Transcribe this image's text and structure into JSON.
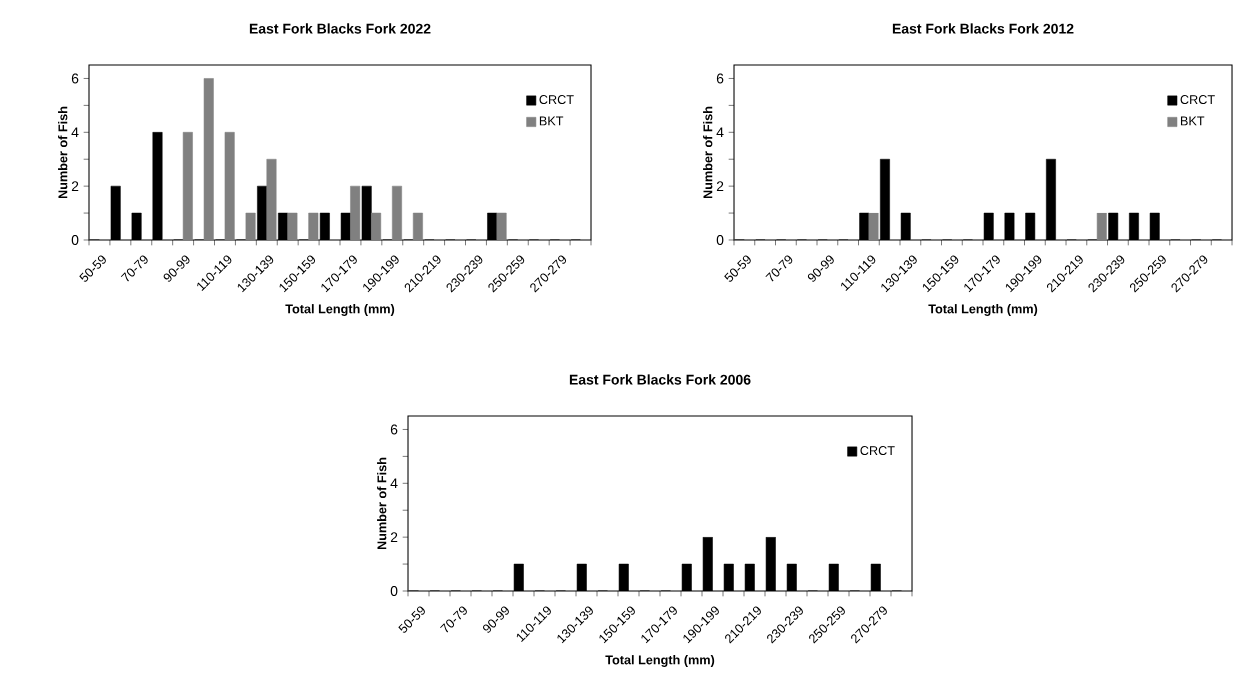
{
  "chart_data": [
    {
      "type": "bar",
      "title": "East Fork Blacks Fork 2022",
      "xlabel": "Total Length (mm)",
      "ylabel": "Number of Fish",
      "categories": [
        "50-59",
        null,
        "70-79",
        null,
        "90-99",
        null,
        "110-119",
        null,
        "130-139",
        null,
        "150-159",
        null,
        "170-179",
        null,
        "190-199",
        null,
        "210-219",
        null,
        "230-239",
        null,
        "250-259",
        null,
        "270-279",
        null
      ],
      "series": [
        {
          "name": "CRCT",
          "color": "#000000",
          "values": [
            0,
            2,
            1,
            4,
            0,
            0,
            0,
            0,
            2,
            1,
            0,
            1,
            1,
            2,
            0,
            0,
            0,
            0,
            0,
            1,
            0,
            0,
            0,
            0
          ]
        },
        {
          "name": "BKT",
          "color": "#808080",
          "values": [
            0,
            0,
            0,
            0,
            4,
            6,
            4,
            1,
            3,
            1,
            1,
            0,
            2,
            1,
            2,
            1,
            0,
            0,
            0,
            1,
            0,
            0,
            0,
            0
          ]
        }
      ],
      "ylim": [
        0,
        6.5
      ],
      "yticks": [
        0,
        {
          "value": 1,
          "label": null
        },
        2,
        {
          "value": 3,
          "label": null
        },
        4,
        {
          "value": 5,
          "label": null
        },
        6
      ],
      "legend": "top right"
    },
    {
      "type": "bar",
      "title": "East Fork Blacks Fork 2012",
      "xlabel": "Total Length (mm)",
      "ylabel": "Number of Fish",
      "categories": [
        "50-59",
        null,
        "70-79",
        null,
        "90-99",
        null,
        "110-119",
        null,
        "130-139",
        null,
        "150-159",
        null,
        "170-179",
        null,
        "190-199",
        null,
        "210-219",
        null,
        "230-239",
        null,
        "250-259",
        null,
        "270-279",
        null
      ],
      "series": [
        {
          "name": "CRCT",
          "color": "#000000",
          "values": [
            0,
            0,
            0,
            0,
            0,
            0,
            1,
            3,
            1,
            0,
            0,
            0,
            1,
            1,
            1,
            3,
            0,
            0,
            1,
            1,
            1,
            0,
            0,
            0
          ]
        },
        {
          "name": "BKT",
          "color": "#808080",
          "values": [
            0,
            0,
            0,
            0,
            0,
            0,
            1,
            0,
            0,
            0,
            0,
            0,
            0,
            0,
            0,
            0,
            0,
            1,
            0,
            0,
            0,
            0,
            0,
            0
          ]
        }
      ],
      "ylim": [
        0,
        6.5
      ],
      "yticks": [
        0,
        {
          "value": 1,
          "label": null
        },
        2,
        {
          "value": 3,
          "label": null
        },
        4,
        {
          "value": 5,
          "label": null
        },
        6
      ],
      "legend": "top right"
    },
    {
      "type": "bar",
      "title": "East Fork Blacks Fork 2006",
      "xlabel": "Total Length (mm)",
      "ylabel": "Number of Fish",
      "categories": [
        "50-59",
        null,
        "70-79",
        null,
        "90-99",
        null,
        "110-119",
        null,
        "130-139",
        null,
        "150-159",
        null,
        "170-179",
        null,
        "190-199",
        null,
        "210-219",
        null,
        "230-239",
        null,
        "250-259",
        null,
        "270-279",
        null
      ],
      "series": [
        {
          "name": "CRCT",
          "color": "#000000",
          "values": [
            0,
            0,
            0,
            0,
            0,
            1,
            0,
            0,
            1,
            0,
            1,
            0,
            0,
            1,
            2,
            1,
            1,
            2,
            1,
            0,
            1,
            0,
            1,
            0
          ]
        }
      ],
      "ylim": [
        0,
        6.5
      ],
      "yticks": [
        0,
        {
          "value": 1,
          "label": null
        },
        2,
        {
          "value": 3,
          "label": null
        },
        4,
        {
          "value": 5,
          "label": null
        },
        6
      ],
      "legend": "top right"
    }
  ]
}
